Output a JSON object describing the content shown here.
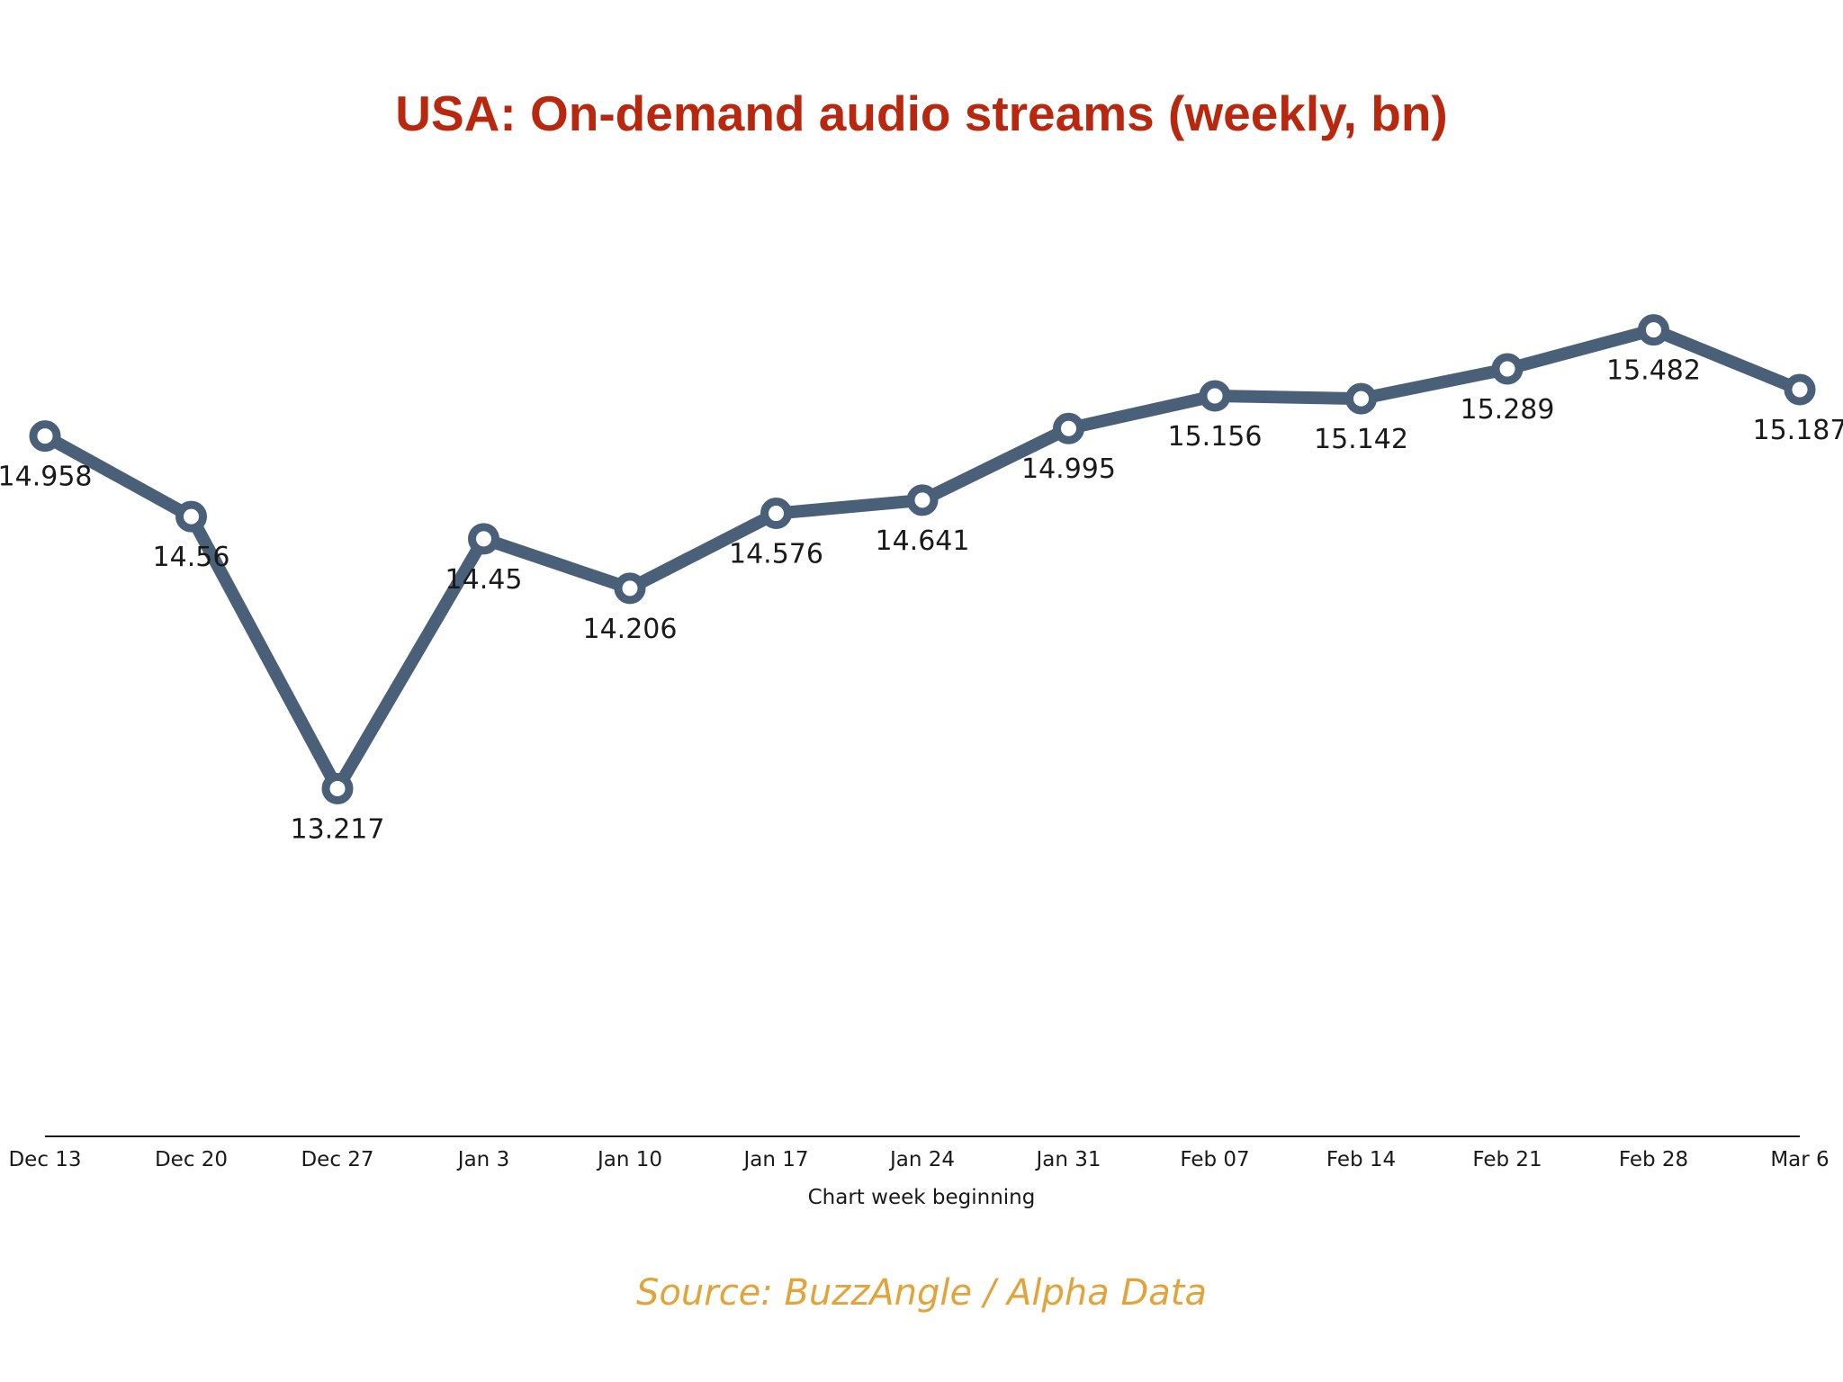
{
  "chart_data": {
    "type": "line",
    "title": "USA: On-demand audio streams (weekly, bn)",
    "xlabel": "Chart week beginning",
    "ylabel": "",
    "source": "Source: BuzzAngle / Alpha Data",
    "categories": [
      "Dec 13",
      "Dec 20",
      "Dec 27",
      "Jan 3",
      "Jan 10",
      "Jan 17",
      "Jan 24",
      "Jan 31",
      "Feb 07",
      "Feb 14",
      "Feb 21",
      "Feb 28",
      "Mar 6"
    ],
    "series": [
      {
        "name": "On-demand audio streams",
        "values": [
          14.958,
          14.56,
          13.217,
          14.45,
          14.206,
          14.576,
          14.641,
          14.995,
          15.156,
          15.142,
          15.289,
          15.482,
          15.187
        ],
        "labels": [
          "14.958",
          "14.56",
          "13.217",
          "14.45",
          "14.206",
          "14.576",
          "14.641",
          "14.995",
          "15.156",
          "15.142",
          "15.289",
          "15.482",
          "15.187"
        ]
      }
    ],
    "ylim": [
      11.5,
      16
    ],
    "grid": false,
    "legend": "none"
  },
  "colors": {
    "title": "#b7280f",
    "line": "#4a6078",
    "marker_fill": "#ffffff",
    "axis": "#1a1a1a",
    "source": "#e3a33b"
  }
}
